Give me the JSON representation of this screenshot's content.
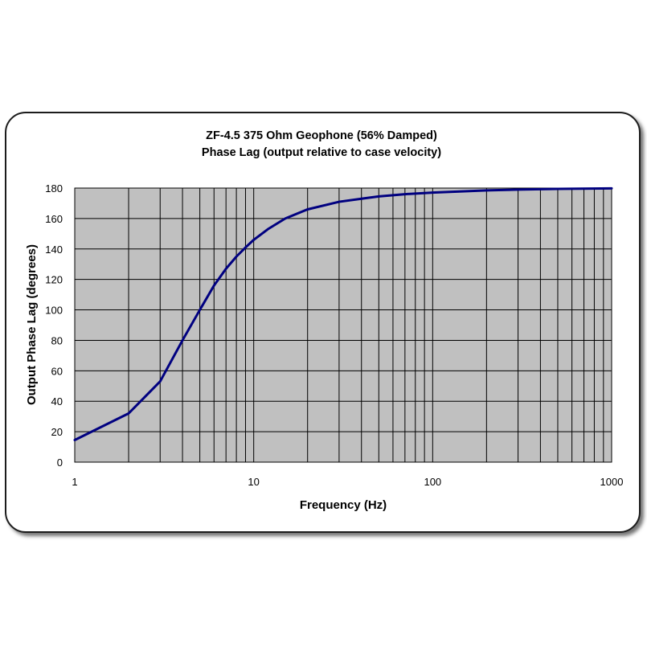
{
  "chart_data": {
    "type": "line",
    "title": "ZF-4.5  375 Ohm Geophone (56% Damped)",
    "subtitle": "Phase Lag (output relative to case velocity)",
    "xlabel": "Frequency (Hz)",
    "ylabel": "Output Phase Lag (degrees)",
    "x_scale": "log",
    "xlim": [
      1,
      1000
    ],
    "ylim": [
      0,
      180
    ],
    "x_ticks": [
      "1",
      "10",
      "100",
      "1000"
    ],
    "y_ticks": [
      "0",
      "20",
      "40",
      "60",
      "80",
      "100",
      "120",
      "140",
      "160",
      "180"
    ],
    "grid": true,
    "legend": "none",
    "colors": {
      "plot_bg": "#c0c0c0",
      "grid": "#000000",
      "line": "#000080"
    },
    "series": [
      {
        "x": [
          1,
          2,
          3,
          4,
          5,
          6,
          7,
          8,
          9,
          10,
          12,
          15,
          20,
          30,
          40,
          50,
          70,
          100,
          200,
          300,
          500,
          1000
        ],
        "values": [
          14.5,
          32,
          53,
          80,
          100,
          116,
          127,
          135,
          141,
          146,
          153,
          160,
          166,
          171,
          173,
          174.5,
          176,
          177,
          178.5,
          179,
          179.5,
          179.8
        ]
      }
    ]
  }
}
